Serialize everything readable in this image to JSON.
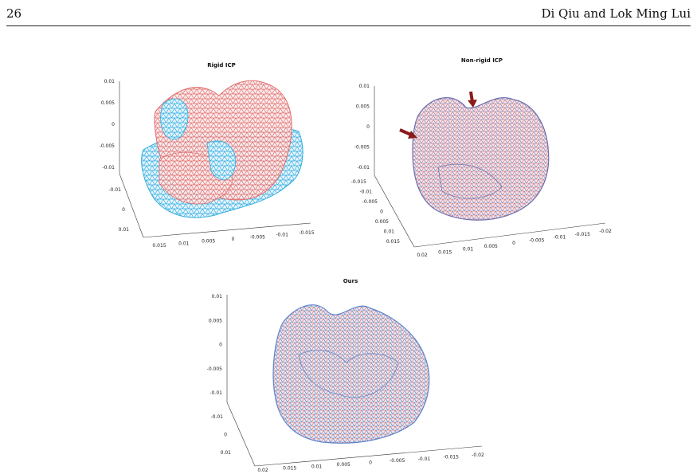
{
  "header": {
    "page_number": "26",
    "running_head": "Di Qiu and Lok Ming Lui"
  },
  "colors": {
    "red_mesh": "#e06a6a",
    "blue_mesh": "#35aee0",
    "arrow": "#8b1a1a"
  },
  "panels": [
    {
      "title": "Rigid ICP",
      "z_ticks": [
        "0.01",
        "0.005",
        "0",
        "-0.005",
        "-0.01"
      ],
      "y_ticks": [
        "-0.01",
        "0",
        "0.01"
      ],
      "x_ticks": [
        "0.015",
        "0.01",
        "0.005",
        "0",
        "-0.005",
        "-0.01",
        "-0.015"
      ]
    },
    {
      "title": "Non-rigid ICP",
      "z_ticks": [
        "0.01",
        "0.005",
        "0",
        "-0.005",
        "-0.01"
      ],
      "y_ticks": [
        "-0.015",
        "-0.01",
        "-0.005",
        "0",
        "0.005",
        "0.01",
        "0.015"
      ],
      "x_ticks": [
        "0.02",
        "0.015",
        "0.01",
        "0.005",
        "0",
        "-0.005",
        "-0.01",
        "-0.015",
        "-0.02"
      ]
    },
    {
      "title": "Ours",
      "z_ticks": [
        "0.01",
        "0.005",
        "0",
        "-0.005",
        "-0.01"
      ],
      "y_ticks": [
        "-0.01",
        "0",
        "0.01"
      ],
      "x_ticks": [
        "0.02",
        "0.015",
        "0.01",
        "0.005",
        "0",
        "-0.005",
        "-0.01",
        "-0.015",
        "-0.02"
      ]
    }
  ]
}
